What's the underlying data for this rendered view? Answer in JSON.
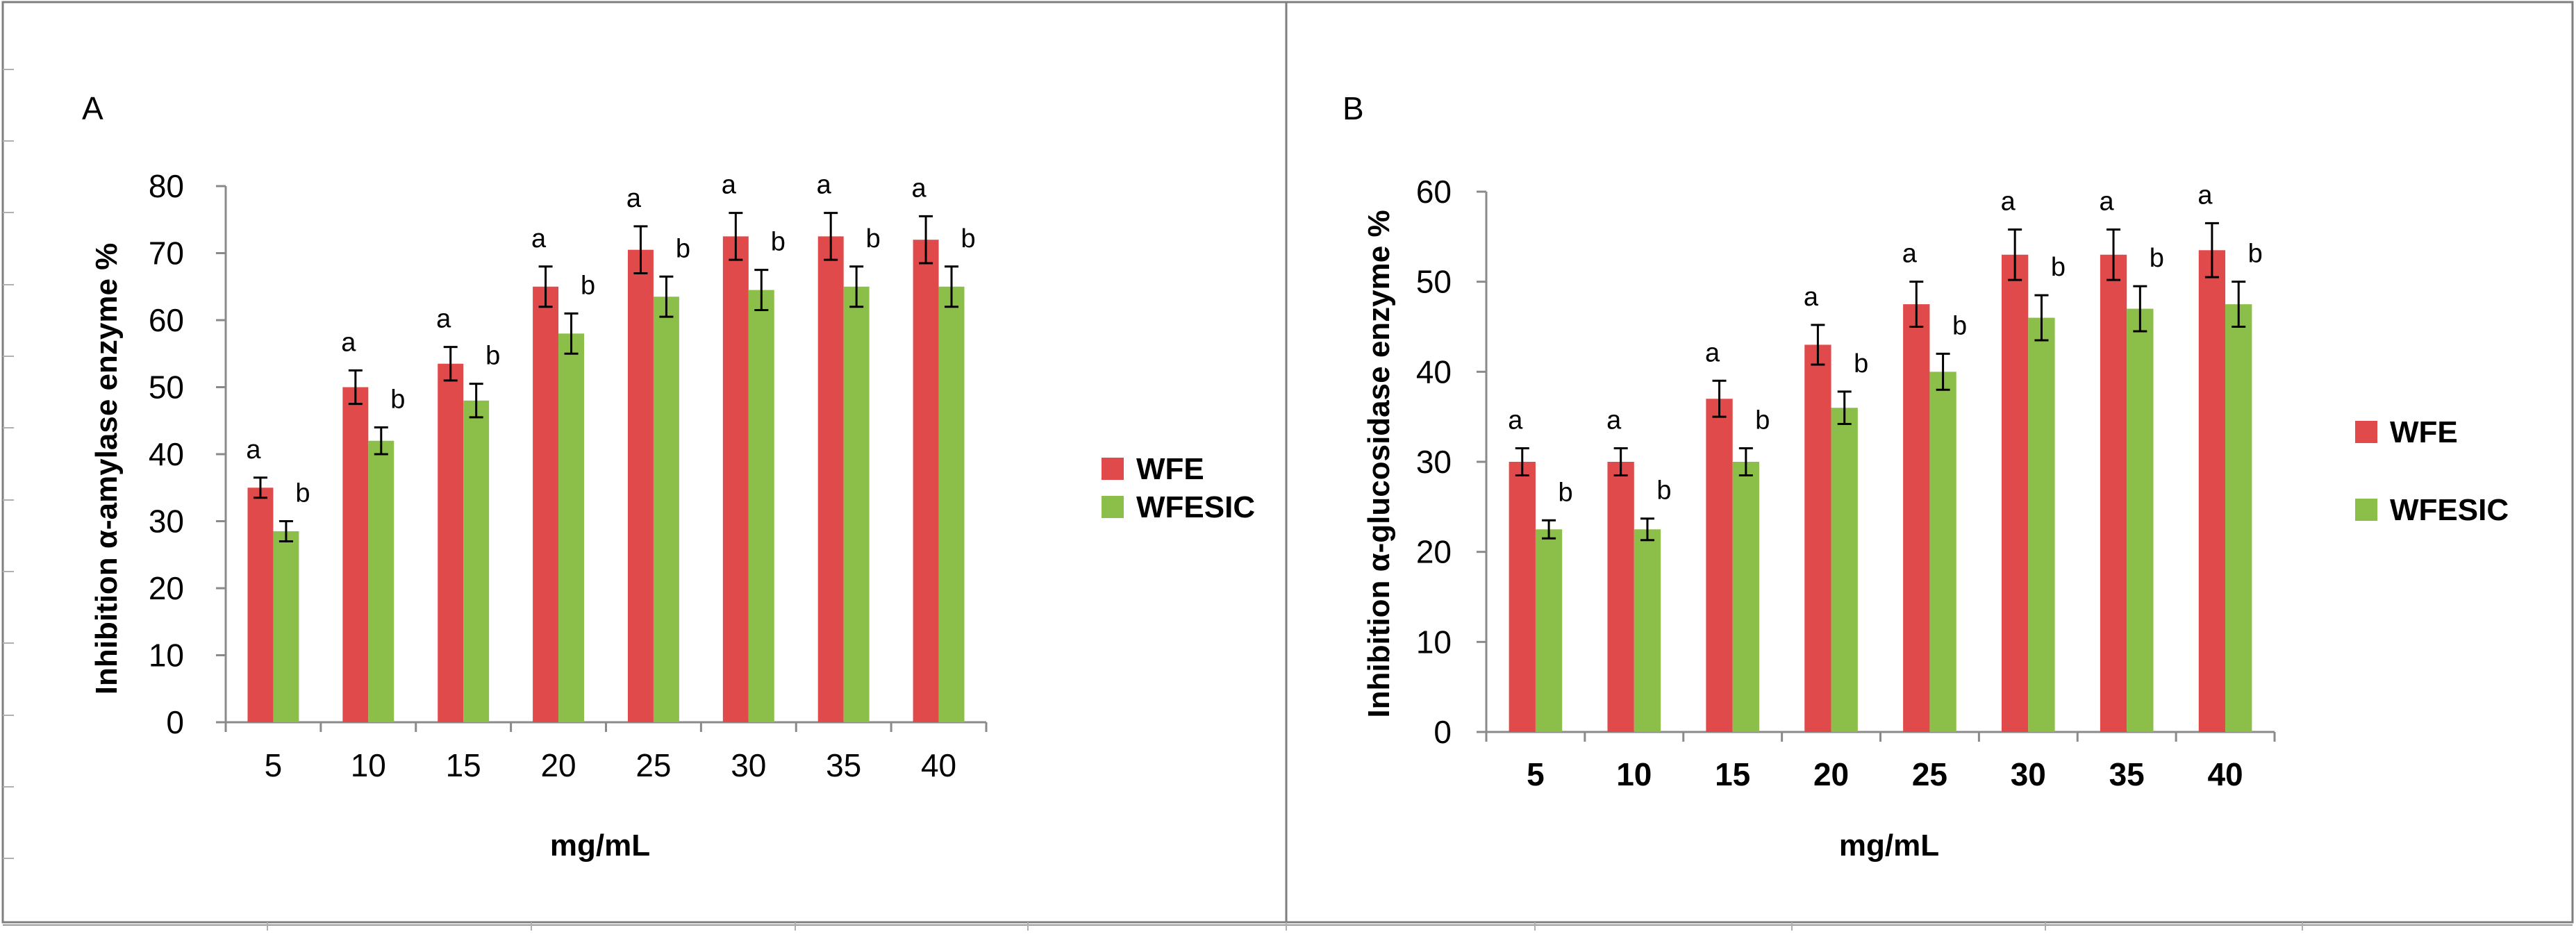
{
  "chart_data": [
    {
      "type": "bar",
      "panel": "A",
      "categories": [
        "5",
        "10",
        "15",
        "20",
        "25",
        "30",
        "35",
        "40"
      ],
      "ylabel": "Inhibition α-amylase enzyme %",
      "xlabel": "mg/mL",
      "ylim": [
        0,
        80
      ],
      "yticks": [
        0,
        10,
        20,
        30,
        40,
        50,
        60,
        70,
        80
      ],
      "legend_position": "right",
      "grid": false,
      "series": [
        {
          "name": "WFE",
          "color": "#e04a4a",
          "values": [
            35,
            50,
            53.5,
            65,
            70.5,
            72.5,
            72.5,
            72
          ],
          "errors": [
            1.5,
            2.5,
            2.5,
            3,
            3.5,
            3.5,
            3.5,
            3.5
          ],
          "letters": [
            "a",
            "a",
            "a",
            "a",
            "a",
            "a",
            "a",
            "a"
          ]
        },
        {
          "name": "WFESIC",
          "color": "#8cbf4a",
          "values": [
            28.5,
            42,
            48,
            58,
            63.5,
            64.5,
            65,
            65
          ],
          "errors": [
            1.5,
            2,
            2.5,
            3,
            3,
            3,
            3,
            3
          ],
          "letters": [
            "b",
            "b",
            "b",
            "b",
            "b",
            "b",
            "b",
            "b"
          ]
        }
      ]
    },
    {
      "type": "bar",
      "panel": "B",
      "categories": [
        "5",
        "10",
        "15",
        "20",
        "25",
        "30",
        "35",
        "40"
      ],
      "ylabel": "Inhibition α-glucosidase enzyme %",
      "xlabel": "mg/mL",
      "ylim": [
        0,
        60
      ],
      "yticks": [
        0,
        10,
        20,
        30,
        40,
        50,
        60
      ],
      "legend_position": "right",
      "grid": false,
      "series": [
        {
          "name": "WFE",
          "color": "#e04a4a",
          "values": [
            30,
            30,
            37,
            43,
            47.5,
            53,
            53,
            53.5
          ],
          "errors": [
            1.5,
            1.5,
            2,
            2.2,
            2.5,
            2.8,
            2.8,
            3
          ],
          "letters": [
            "a",
            "a",
            "a",
            "a",
            "a",
            "a",
            "a",
            "a"
          ]
        },
        {
          "name": "WFESIC",
          "color": "#8cbf4a",
          "values": [
            22.5,
            22.5,
            30,
            36,
            40,
            46,
            47,
            47.5
          ],
          "errors": [
            1,
            1.2,
            1.5,
            1.8,
            2,
            2.5,
            2.5,
            2.5
          ],
          "letters": [
            "b",
            "b",
            "b",
            "b",
            "b",
            "b",
            "b",
            "b"
          ]
        }
      ]
    }
  ]
}
